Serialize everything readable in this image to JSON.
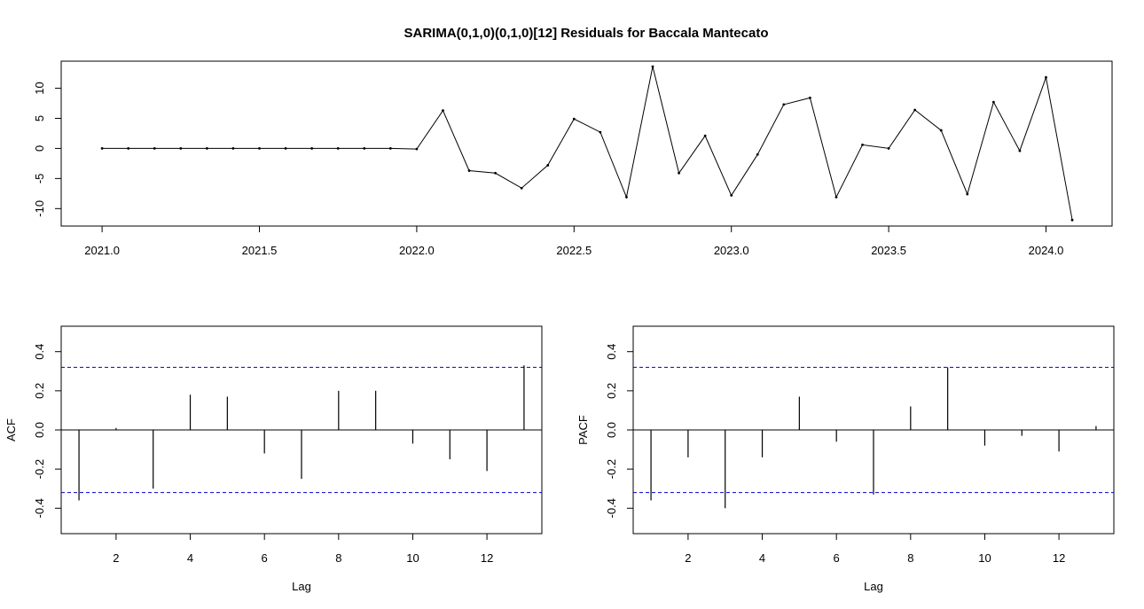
{
  "chart_data": [
    {
      "type": "line",
      "title": "SARIMA(0,1,0)(0,1,0)[12] Residuals for Baccala Mantecato",
      "xlabel": "",
      "ylabel": "",
      "xlim": [
        2020.87,
        2024.21
      ],
      "ylim": [
        -12.9,
        14.5
      ],
      "x_ticks": [
        2021.0,
        2021.5,
        2022.0,
        2022.5,
        2023.0,
        2023.5,
        2024.0
      ],
      "x_tick_labels": [
        "2021.0",
        "2021.5",
        "2022.0",
        "2022.5",
        "2023.0",
        "2023.5",
        "2024.0"
      ],
      "y_ticks": [
        -10,
        -5,
        0,
        5,
        10
      ],
      "y_tick_labels": [
        "-10",
        "-5",
        "0",
        "5",
        "10"
      ],
      "series": [
        {
          "x_start": 2021.0,
          "x_step": 0.0833333,
          "values": [
            0,
            0,
            0,
            0,
            0,
            0,
            0,
            0,
            0,
            0,
            0,
            0,
            -0.1,
            6.3,
            -3.7,
            -4.1,
            -6.6,
            -2.8,
            4.9,
            2.7,
            -8.1,
            13.6,
            -4.1,
            2.1,
            -7.8,
            -1.0,
            7.3,
            8.4,
            -8.1,
            0.6,
            0.0,
            6.4,
            3.0,
            -7.6,
            7.7,
            -0.4,
            11.8,
            -11.9
          ],
          "color": "#000000"
        }
      ]
    },
    {
      "type": "bar",
      "xlabel": "Lag",
      "ylabel": "ACF",
      "xlim": [
        0.52,
        13.48
      ],
      "ylim": [
        -0.53,
        0.53
      ],
      "x_ticks": [
        2,
        4,
        6,
        8,
        10,
        12
      ],
      "x_tick_labels": [
        "2",
        "4",
        "6",
        "8",
        "10",
        "12"
      ],
      "y_ticks": [
        -0.4,
        -0.2,
        0.0,
        0.2,
        0.4
      ],
      "y_tick_labels": [
        "-0.4",
        "-0.2",
        "0.0",
        "0.2",
        "0.4"
      ],
      "lags": [
        1,
        2,
        3,
        4,
        5,
        6,
        7,
        8,
        9,
        10,
        11,
        12,
        13
      ],
      "values": [
        -0.36,
        0.01,
        -0.3,
        0.18,
        0.17,
        -0.12,
        -0.25,
        0.2,
        0.2,
        -0.07,
        -0.15,
        -0.21,
        0.33
      ],
      "confidence_bound": 0.32,
      "bound_color": "#0000cc"
    },
    {
      "type": "bar",
      "xlabel": "Lag",
      "ylabel": "PACF",
      "xlim": [
        0.52,
        13.48
      ],
      "ylim": [
        -0.53,
        0.53
      ],
      "x_ticks": [
        2,
        4,
        6,
        8,
        10,
        12
      ],
      "x_tick_labels": [
        "2",
        "4",
        "6",
        "8",
        "10",
        "12"
      ],
      "y_ticks": [
        -0.4,
        -0.2,
        0.0,
        0.2,
        0.4
      ],
      "y_tick_labels": [
        "-0.4",
        "-0.2",
        "0.0",
        "0.2",
        "0.4"
      ],
      "lags": [
        1,
        2,
        3,
        4,
        5,
        6,
        7,
        8,
        9,
        10,
        11,
        12,
        13
      ],
      "values": [
        -0.36,
        -0.14,
        -0.4,
        -0.14,
        0.17,
        -0.06,
        -0.33,
        0.12,
        0.32,
        -0.08,
        -0.03,
        -0.11,
        0.02
      ],
      "confidence_bound": 0.32,
      "bound_color": "#0000cc"
    }
  ]
}
